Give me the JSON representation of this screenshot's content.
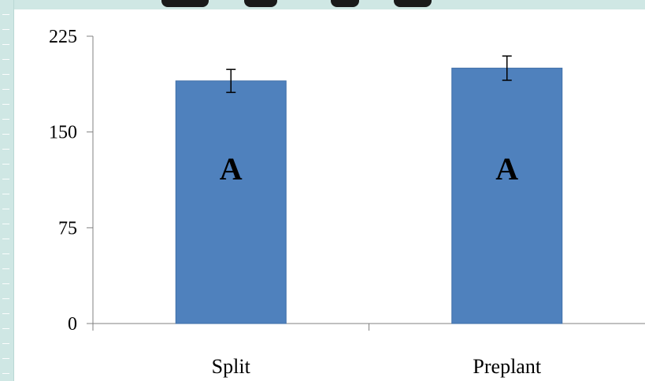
{
  "chart_data": {
    "type": "bar",
    "title": "",
    "xlabel": "",
    "ylabel": "",
    "categories": [
      "Split",
      "Preplant"
    ],
    "values": [
      190,
      200
    ],
    "error": [
      9,
      9.5
    ],
    "bar_labels": [
      "A",
      "A"
    ],
    "ylim": [
      0,
      225
    ],
    "yticks": [
      0,
      75,
      150,
      225
    ],
    "ytick_labels": [
      "0",
      "75",
      "150",
      "225"
    ],
    "grid": false,
    "legend": "none",
    "colors": {
      "bar": "#4f81bd",
      "bar_edge": "#3f6fa8",
      "axis": "#808080",
      "error_bar": "#000000",
      "frame": "#cfe7e4"
    }
  }
}
